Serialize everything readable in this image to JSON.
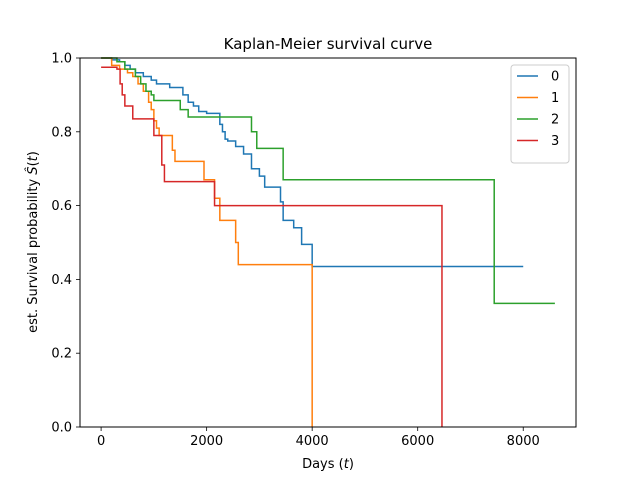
{
  "chart_data": {
    "type": "line",
    "step": "post",
    "title": "Kaplan-Meier survival curve",
    "xlabel": "Days (t)",
    "ylabel": "est. Survival probability Ŝ(t)",
    "xlim": [
      -400,
      9000
    ],
    "ylim": [
      0.0,
      1.0
    ],
    "xticks": [
      0,
      2000,
      4000,
      6000,
      8000
    ],
    "yticks": [
      0.0,
      0.2,
      0.4,
      0.6,
      0.8,
      1.0
    ],
    "xtick_labels": [
      "0",
      "2000",
      "4000",
      "6000",
      "8000"
    ],
    "ytick_labels": [
      "0.0",
      "0.2",
      "0.4",
      "0.6",
      "0.8",
      "1.0"
    ],
    "grid": false,
    "legend_position": "top-right",
    "series": [
      {
        "name": "0",
        "color": "#1f77b4",
        "x": [
          0,
          200,
          350,
          450,
          550,
          650,
          800,
          950,
          1050,
          1300,
          1550,
          1650,
          1750,
          1850,
          2000,
          2250,
          2300,
          2350,
          2400,
          2550,
          2700,
          2850,
          3000,
          3100,
          3400,
          3450,
          3650,
          3800,
          4000,
          8000
        ],
        "y": [
          1.0,
          0.995,
          0.99,
          0.98,
          0.97,
          0.96,
          0.95,
          0.94,
          0.93,
          0.92,
          0.9,
          0.88,
          0.87,
          0.855,
          0.85,
          0.82,
          0.8,
          0.78,
          0.775,
          0.76,
          0.74,
          0.7,
          0.68,
          0.65,
          0.61,
          0.56,
          0.54,
          0.495,
          0.435,
          0.435
        ]
      },
      {
        "name": "1",
        "color": "#ff7f0e",
        "x": [
          0,
          200,
          350,
          500,
          600,
          700,
          800,
          900,
          950,
          1000,
          1050,
          1100,
          1200,
          1350,
          1400,
          1950,
          2150,
          2250,
          2550,
          2600,
          3950,
          4000
        ],
        "y": [
          1.0,
          0.98,
          0.97,
          0.96,
          0.95,
          0.93,
          0.91,
          0.88,
          0.86,
          0.83,
          0.81,
          0.79,
          0.79,
          0.75,
          0.72,
          0.67,
          0.62,
          0.56,
          0.5,
          0.44,
          0.44,
          0.0
        ]
      },
      {
        "name": "2",
        "color": "#2ca02c",
        "x": [
          0,
          300,
          450,
          650,
          750,
          850,
          950,
          1000,
          1050,
          1500,
          1650,
          1700,
          2200,
          2850,
          2950,
          3450,
          7450,
          8600
        ],
        "y": [
          1.0,
          0.99,
          0.97,
          0.95,
          0.93,
          0.91,
          0.9,
          0.885,
          0.885,
          0.86,
          0.84,
          0.84,
          0.84,
          0.8,
          0.755,
          0.67,
          0.335,
          0.335
        ]
      },
      {
        "name": "3",
        "color": "#d62728",
        "x": [
          0,
          300,
          360,
          400,
          450,
          600,
          1000,
          1100,
          1150,
          1200,
          2100,
          2150,
          6450,
          6460
        ],
        "y": [
          0.975,
          0.97,
          0.93,
          0.9,
          0.87,
          0.835,
          0.79,
          0.79,
          0.71,
          0.665,
          0.665,
          0.6,
          0.6,
          0.0
        ]
      }
    ]
  }
}
